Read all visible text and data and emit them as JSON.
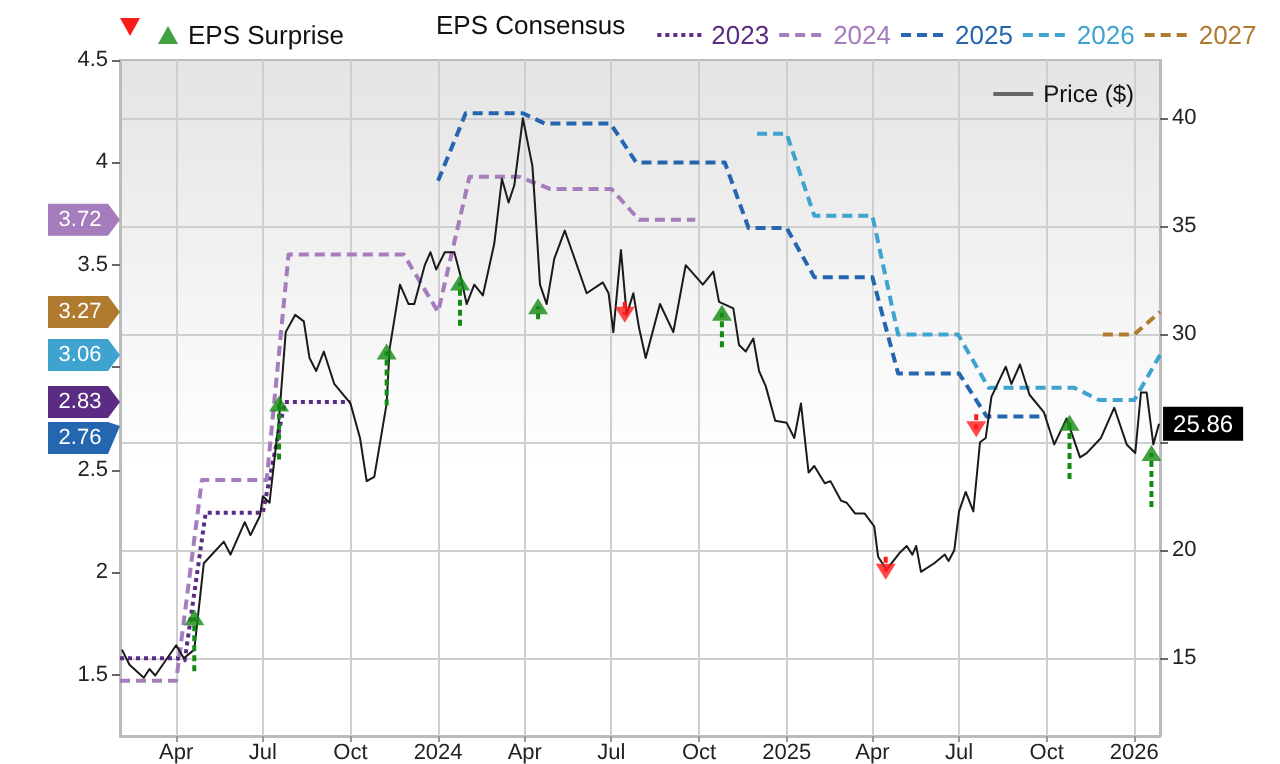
{
  "chart_data": {
    "type": "line",
    "legend": "top",
    "legend_title": "EPS Consensus",
    "grid": true,
    "marker": "none",
    "xlim": [
      "2023-02-01",
      "2026-01-28"
    ],
    "xticks": [
      {
        "value": "2023-04-01",
        "label": "Apr"
      },
      {
        "value": "2023-07-01",
        "label": "Jul"
      },
      {
        "value": "2023-10-01",
        "label": "Oct"
      },
      {
        "value": "2024-01-01",
        "label": "2024"
      },
      {
        "value": "2024-04-01",
        "label": "Apr"
      },
      {
        "value": "2024-07-01",
        "label": "Jul"
      },
      {
        "value": "2024-10-01",
        "label": "Oct"
      },
      {
        "value": "2025-01-01",
        "label": "2025"
      },
      {
        "value": "2025-04-01",
        "label": "Apr"
      },
      {
        "value": "2025-07-01",
        "label": "Jul"
      },
      {
        "value": "2025-10-01",
        "label": "Oct"
      },
      {
        "value": "2026-01-01",
        "label": "2026"
      }
    ],
    "ylim": [
      1.2,
      4.5
    ],
    "yticks": [
      1.5,
      2,
      2.5,
      {
        "value": 3,
        "label": null
      },
      3.5,
      4,
      4.5
    ],
    "y2lim": [
      11.4,
      42.7
    ],
    "y2ticks": [
      15,
      20,
      {
        "value": 25,
        "label": null
      },
      30,
      35,
      40
    ],
    "series": [
      {
        "type": "scatter",
        "name": "EPS Surprise",
        "axis": "y2",
        "marker": "triangle",
        "x": [
          "2023-04-20",
          "2023-07-18",
          "2023-11-08",
          "2024-01-24",
          "2024-04-15",
          "2024-07-15",
          "2024-10-25",
          "2025-04-15",
          "2025-07-19",
          "2025-10-25",
          "2026-01-19"
        ],
        "values": [
          16.9,
          26.8,
          29.2,
          32.4,
          31.3,
          30.9,
          31.0,
          19.0,
          25.6,
          25.9,
          24.5
        ],
        "errors": [
          [
            14.4,
            16.9
          ],
          [
            24.2,
            26.8
          ],
          [
            26.7,
            29.2
          ],
          [
            30.4,
            32.4
          ],
          [
            30.7,
            31.3
          ],
          [
            30.9,
            31.5
          ],
          [
            29.4,
            31.0
          ],
          [
            19.0,
            19.7
          ],
          [
            25.6,
            26.3
          ],
          [
            23.3,
            25.9
          ],
          [
            22.0,
            24.5
          ]
        ],
        "colors": [
          "#138a13",
          "#138a13",
          "#138a13",
          "#138a13",
          "#138a13",
          "#ff1a1a",
          "#138a13",
          "#ff1a1a",
          "#ff1a1a",
          "#138a13",
          "#138a13"
        ]
      },
      {
        "name": "2023",
        "color": "#5b2c83",
        "line_style": "dotted",
        "x": [
          "2023-02-01",
          "2023-04-01",
          "2023-04-10",
          "2023-05-02",
          "2023-07-01",
          "2023-07-24",
          "2023-10-01"
        ],
        "values": [
          1.58,
          1.58,
          1.57,
          2.29,
          2.29,
          2.83,
          2.83
        ]
      },
      {
        "name": "2024",
        "color": "#a57dbd",
        "line_style": "dashed",
        "x": [
          "2023-02-01",
          "2023-04-01",
          "2023-04-28",
          "2023-07-05",
          "2023-07-28",
          "2023-11-26",
          "2024-01-01",
          "2024-02-03",
          "2024-03-26",
          "2024-04-28",
          "2024-07-01",
          "2024-07-30",
          "2024-09-27"
        ],
        "values": [
          1.47,
          1.47,
          2.45,
          2.45,
          3.55,
          3.55,
          3.27,
          3.93,
          3.93,
          3.87,
          3.87,
          3.72,
          3.72
        ]
      },
      {
        "name": "2025",
        "color": "#2566b0",
        "line_style": "dashed",
        "x": [
          "2024-01-01",
          "2024-01-30",
          "2024-03-30",
          "2024-04-22",
          "2024-06-30",
          "2024-07-27",
          "2024-10-28",
          "2024-11-22",
          "2025-01-01",
          "2025-01-30",
          "2025-04-01",
          "2025-04-28",
          "2025-07-01",
          "2025-07-30",
          "2025-10-01"
        ],
        "values": [
          3.91,
          4.24,
          4.24,
          4.19,
          4.19,
          4.0,
          4.0,
          3.68,
          3.68,
          3.44,
          3.44,
          2.97,
          2.97,
          2.76,
          2.76
        ]
      },
      {
        "name": "2026",
        "color": "#3fa3d0",
        "line_style": "dashed",
        "x": [
          "2024-12-01",
          "2025-01-01",
          "2025-01-30",
          "2025-04-01",
          "2025-04-28",
          "2025-06-30",
          "2025-08-01",
          "2025-10-30",
          "2025-11-25",
          "2026-01-01",
          "2026-01-28"
        ],
        "values": [
          4.14,
          4.14,
          3.74,
          3.74,
          3.16,
          3.16,
          2.9,
          2.9,
          2.84,
          2.84,
          3.06
        ]
      },
      {
        "name": "2027",
        "color": "#b07a2f",
        "line_style": "dashed",
        "x": [
          "2025-11-29",
          "2026-01-01",
          "2026-01-28"
        ],
        "values": [
          3.16,
          3.16,
          3.27
        ]
      },
      {
        "name": "Price ($)",
        "axis": "y2",
        "color": "#1a1a1a",
        "x": [
          "2023-02-03",
          "2023-02-11",
          "2023-02-26",
          "2023-03-04",
          "2023-03-10",
          "2023-04-01",
          "2023-04-09",
          "2023-04-20",
          "2023-04-30",
          "2023-05-21",
          "2023-05-28",
          "2023-06-12",
          "2023-06-18",
          "2023-06-28",
          "2023-07-01",
          "2023-07-08",
          "2023-07-18",
          "2023-07-25",
          "2023-08-04",
          "2023-08-13",
          "2023-08-19",
          "2023-08-26",
          "2023-09-03",
          "2023-09-14",
          "2023-10-01",
          "2023-10-11",
          "2023-10-18",
          "2023-10-26",
          "2023-11-08",
          "2023-11-11",
          "2023-11-22",
          "2023-12-01",
          "2023-12-07",
          "2023-12-18",
          "2023-12-24",
          "2023-12-30",
          "2024-01-08",
          "2024-01-18",
          "2024-01-24",
          "2024-01-31",
          "2024-02-08",
          "2024-02-17",
          "2024-02-29",
          "2024-03-08",
          "2024-03-15",
          "2024-03-21",
          "2024-03-30",
          "2024-04-09",
          "2024-04-11",
          "2024-04-17",
          "2024-04-24",
          "2024-05-02",
          "2024-05-13",
          "2024-05-21",
          "2024-06-05",
          "2024-06-22",
          "2024-06-28",
          "2024-07-03",
          "2024-07-11",
          "2024-07-17",
          "2024-07-24",
          "2024-07-30",
          "2024-08-06",
          "2024-08-21",
          "2024-09-04",
          "2024-09-17",
          "2024-10-05",
          "2024-10-16",
          "2024-10-22",
          "2024-11-06",
          "2024-11-12",
          "2024-11-19",
          "2024-11-27",
          "2024-12-03",
          "2024-12-10",
          "2024-12-20",
          "2025-01-01",
          "2025-01-09",
          "2025-01-16",
          "2025-01-24",
          "2025-01-30",
          "2025-02-10",
          "2025-02-16",
          "2025-02-27",
          "2025-03-05",
          "2025-03-14",
          "2025-03-24",
          "2025-04-03",
          "2025-04-07",
          "2025-04-16",
          "2025-04-30",
          "2025-05-07",
          "2025-05-13",
          "2025-05-17",
          "2025-05-22",
          "2025-06-05",
          "2025-06-16",
          "2025-06-20",
          "2025-06-26",
          "2025-07-01",
          "2025-07-08",
          "2025-07-16",
          "2025-07-23",
          "2025-07-29",
          "2025-08-04",
          "2025-08-19",
          "2025-08-25",
          "2025-09-03",
          "2025-09-13",
          "2025-09-28",
          "2025-10-09",
          "2025-10-22",
          "2025-11-05",
          "2025-11-12",
          "2025-11-27",
          "2025-12-11",
          "2025-12-24",
          "2026-01-02",
          "2026-01-08",
          "2026-01-14",
          "2026-01-21",
          "2026-01-27"
        ],
        "values": [
          15.4,
          14.7,
          14.1,
          14.5,
          14.2,
          15.6,
          15.0,
          15.4,
          19.4,
          20.4,
          19.8,
          21.3,
          20.7,
          21.6,
          22.5,
          22.2,
          26.1,
          30.1,
          30.9,
          30.6,
          28.9,
          28.3,
          29.2,
          27.7,
          26.8,
          25.2,
          23.2,
          23.4,
          26.8,
          29.3,
          32.3,
          31.4,
          31.4,
          33.2,
          33.8,
          33.0,
          33.8,
          33.8,
          32.8,
          31.4,
          32.3,
          31.8,
          34.2,
          37.2,
          36.1,
          36.9,
          40.0,
          37.8,
          36.5,
          32.3,
          31.4,
          33.5,
          34.8,
          33.8,
          31.9,
          32.4,
          31.9,
          30.1,
          33.9,
          30.9,
          31.9,
          30.3,
          28.9,
          31.4,
          30.1,
          33.2,
          32.3,
          32.9,
          31.5,
          31.2,
          29.5,
          29.2,
          29.8,
          28.3,
          27.6,
          26.0,
          25.9,
          25.2,
          26.8,
          23.6,
          23.9,
          23.1,
          23.2,
          22.3,
          22.2,
          21.7,
          21.7,
          21.1,
          19.7,
          19.1,
          19.9,
          20.2,
          19.8,
          20.2,
          19.0,
          19.4,
          19.8,
          19.5,
          20.0,
          21.8,
          22.7,
          21.8,
          25.0,
          25.2,
          27.1,
          28.5,
          27.7,
          28.6,
          27.2,
          26.4,
          24.9,
          26.1,
          24.3,
          24.5,
          25.2,
          26.6,
          24.9,
          24.5,
          27.3,
          27.3,
          24.9,
          25.86
        ],
        "value_labels": [
          null,
          null,
          null,
          null,
          null,
          null,
          null,
          null,
          null,
          null,
          null,
          null,
          null,
          null,
          null,
          null,
          null,
          null,
          null,
          null,
          null,
          null,
          null,
          null,
          null,
          null,
          null,
          null,
          null,
          null,
          null,
          null,
          null,
          null,
          null,
          null,
          null,
          null,
          null,
          null,
          null,
          null,
          null,
          null,
          null,
          null,
          null,
          null,
          null,
          null,
          null,
          null,
          null,
          null,
          null,
          null,
          null,
          null,
          null,
          null,
          null,
          null,
          null,
          null,
          null,
          null,
          null,
          null,
          null,
          null,
          null,
          null,
          null,
          null,
          null,
          null,
          null,
          null,
          null,
          null,
          null,
          null,
          null,
          null,
          null,
          null,
          null,
          null,
          null,
          null,
          null,
          null,
          null,
          null,
          null,
          null,
          null,
          null,
          null,
          null,
          null,
          null,
          null,
          null,
          null,
          null,
          null,
          null,
          null,
          null,
          null,
          null,
          null,
          null,
          null,
          null,
          null,
          null,
          null,
          null,
          null,
          "25.86"
        ]
      }
    ],
    "annotations": [
      "2.83",
      "3.72",
      "2.76",
      "3.06",
      "3.27"
    ]
  }
}
